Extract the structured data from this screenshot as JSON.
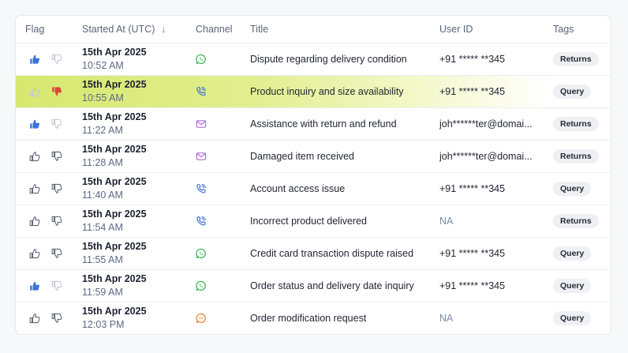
{
  "table": {
    "columns": {
      "flag": "Flag",
      "started_at": "Started At (UTC)",
      "channel": "Channel",
      "title": "Title",
      "user_id": "User ID",
      "tags": "Tags"
    },
    "sort_icon": "arrow-down-icon",
    "rows": [
      {
        "flag": "up",
        "date": "15th Apr 2025",
        "time": "10:52 AM",
        "channel": "whatsapp",
        "title": "Dispute regarding delivery condition",
        "user_id": "+91 ***** **345",
        "tag": "Returns",
        "highlight": false
      },
      {
        "flag": "down",
        "date": "15th Apr 2025",
        "time": "10:55 AM",
        "channel": "phone",
        "title": "Product inquiry and size availability",
        "user_id": "+91 ***** **345",
        "tag": "Query",
        "highlight": true
      },
      {
        "flag": "up",
        "date": "15th Apr 2025",
        "time": "11:22 AM",
        "channel": "email",
        "title": "Assistance with return and refund",
        "user_id": "joh******ter@domain.com",
        "tag": "Returns",
        "highlight": false
      },
      {
        "flag": "none",
        "date": "15th Apr 2025",
        "time": "11:28 AM",
        "channel": "email",
        "title": "Damaged item received",
        "user_id": "joh******ter@domain.com",
        "tag": "Returns",
        "highlight": false
      },
      {
        "flag": "none",
        "date": "15th Apr 2025",
        "time": "11:40 AM",
        "channel": "phone",
        "title": "Account access issue",
        "user_id": "+91 ***** **345",
        "tag": "Query",
        "highlight": false
      },
      {
        "flag": "none",
        "date": "15th Apr 2025",
        "time": "11:54 AM",
        "channel": "phone",
        "title": "Incorrect product delivered",
        "user_id": "NA",
        "tag": "Returns",
        "highlight": false
      },
      {
        "flag": "none",
        "date": "15th Apr 2025",
        "time": "11:55 AM",
        "channel": "whatsapp",
        "title": "Credit card transaction dispute raised",
        "user_id": "+91 ***** **345",
        "tag": "Query",
        "highlight": false
      },
      {
        "flag": "up",
        "date": "15th Apr 2025",
        "time": "11:59 AM",
        "channel": "whatsapp",
        "title": "Order status and delivery date inquiry",
        "user_id": "+91 ***** **345",
        "tag": "Query",
        "highlight": false
      },
      {
        "flag": "none",
        "date": "15th Apr 2025",
        "time": "12:03 PM",
        "channel": "chat",
        "title": "Order modification request",
        "user_id": "NA",
        "tag": "Query",
        "highlight": false
      }
    ]
  },
  "colors": {
    "thumb_up_active": "#3b73d9",
    "thumb_down_active": "#e0453a",
    "thumb_inactive": "#5f6675",
    "thumb_faded": "#c4c9d3",
    "whatsapp": "#2fb34a",
    "phone": "#3d6fd6",
    "email": "#b56ad8",
    "chat": "#ec7b2a",
    "highlight": "#d7e86f"
  }
}
